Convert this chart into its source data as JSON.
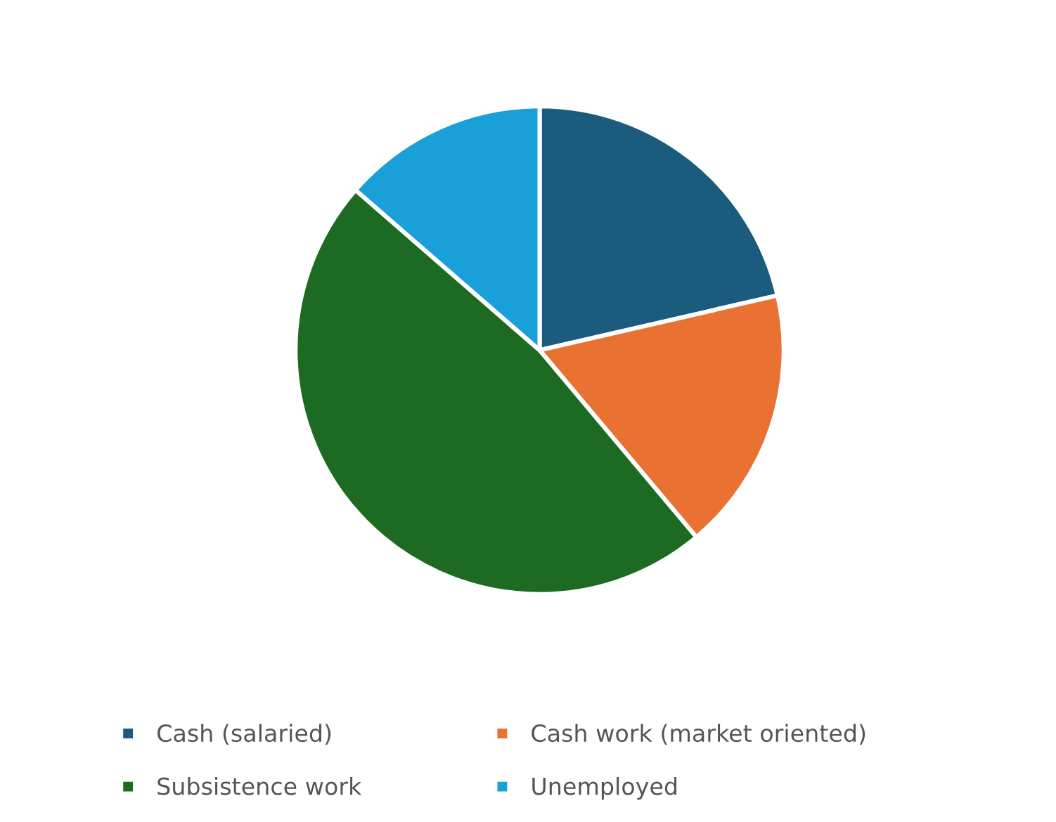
{
  "chart_data": {
    "type": "pie",
    "categories": [
      "Cash (salaried)",
      "Cash work (market oriented)",
      "Subsistence work",
      "Unemployed"
    ],
    "values": [
      21.4,
      17.5,
      47.5,
      13.6
    ],
    "colors": [
      "#1b5b7d",
      "#e97131",
      "#1d6b23",
      "#1aa0d9"
    ],
    "legend": "bottom"
  }
}
